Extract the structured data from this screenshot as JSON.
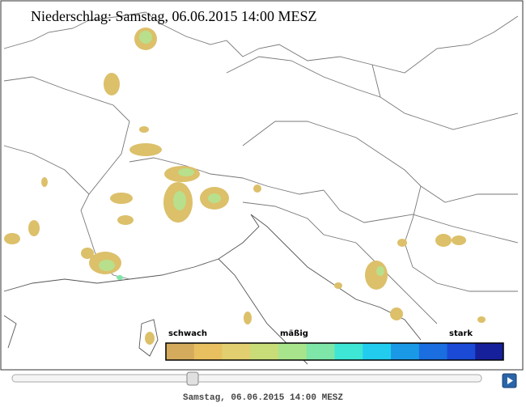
{
  "header": {
    "title": "Niederschlag: Samstag, 06.06.2015 14:00  MESZ"
  },
  "legend": {
    "labels": [
      "schwach",
      "mäßig",
      "stark"
    ],
    "colors": [
      "#d4aa5c",
      "#e8c060",
      "#e2d070",
      "#c8dc78",
      "#a8e48c",
      "#7ee6a8",
      "#3ee6d6",
      "#22ccee",
      "#1a9ae6",
      "#1a6ee0",
      "#1a4ad6",
      "#16209a"
    ]
  },
  "footer": {
    "timestamp": "Samstag, 06.06.2015 14:00 MESZ"
  }
}
